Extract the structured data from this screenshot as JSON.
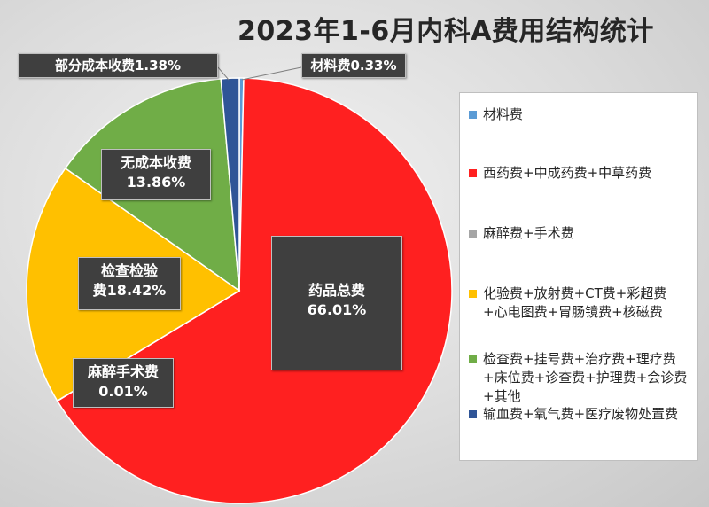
{
  "title": "2023年1-6月内科A费用结构统计",
  "chart_data": {
    "type": "pie",
    "title": "2023年1-6月内科A费用结构统计",
    "slices": [
      {
        "label_line1": "材料费",
        "label_line2": "0.33%",
        "value": 0.33,
        "color": "#5b9bd5"
      },
      {
        "label_line1": "药品总费",
        "label_line2": "66.01%",
        "value": 66.01,
        "color": "#ff2020"
      },
      {
        "label_line1": "麻醉手术费",
        "label_line2": "0.01%",
        "value": 0.01,
        "color": "#a5a5a5"
      },
      {
        "label_line1": "检查检验",
        "label_line2": "费18.42%",
        "value": 18.42,
        "color": "#ffc000"
      },
      {
        "label_line1": "无成本收费",
        "label_line2": "13.86%",
        "value": 13.86,
        "color": "#70ad47"
      },
      {
        "label_line1": "部分成本收费",
        "label_line2": "1.38%",
        "value": 1.38,
        "color": "#2f5597"
      }
    ],
    "legend_position": "right",
    "legend": [
      {
        "text": "材料费",
        "color": "#5b9bd5"
      },
      {
        "text": "西药费+中成药费+中草药费",
        "color": "#ff2020"
      },
      {
        "text": "麻醉费+手术费",
        "color": "#a5a5a5"
      },
      {
        "text": "化验费+放射费+CT费+彩超费+心电图费+胃肠镜费+核磁费",
        "color": "#ffc000"
      },
      {
        "text": "检查费+挂号费+治疗费+理疗费+床位费+诊查费+护理费+会诊费+其他",
        "color": "#70ad47"
      },
      {
        "text": "输血费+氧气费+医疗废物处置费",
        "color": "#2f5597"
      }
    ]
  }
}
